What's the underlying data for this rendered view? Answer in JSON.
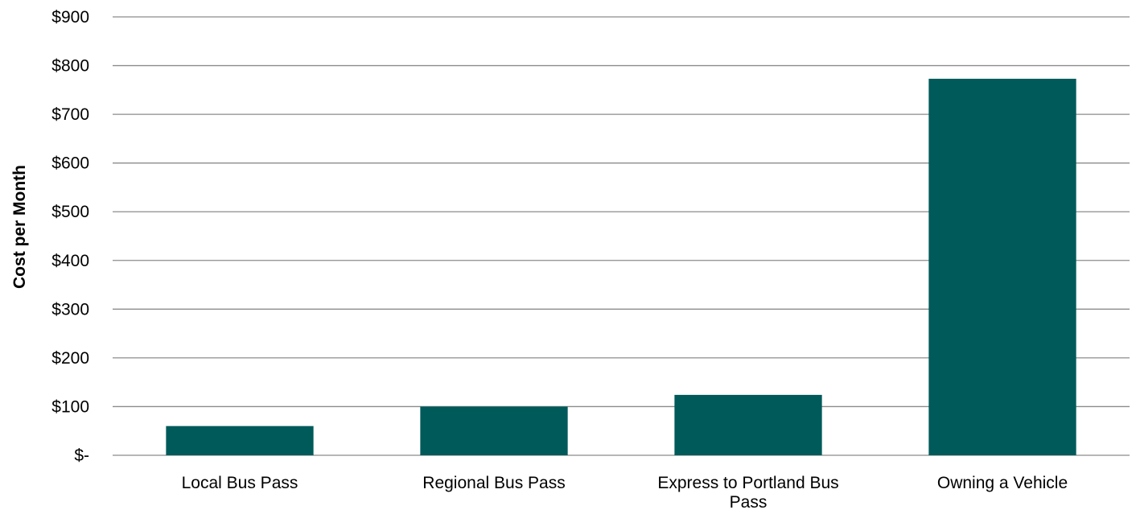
{
  "chart_data": {
    "type": "bar",
    "title": "",
    "xlabel": "",
    "ylabel": "Cost per Month",
    "categories": [
      [
        "Local Bus Pass"
      ],
      [
        "Regional Bus Pass"
      ],
      [
        "Express to Portland Bus",
        "Pass"
      ],
      [
        "Owning a Vehicle"
      ]
    ],
    "values": [
      60,
      100,
      124,
      773
    ],
    "ylim": [
      0,
      900
    ],
    "yticks": [
      0,
      100,
      200,
      300,
      400,
      500,
      600,
      700,
      800,
      900
    ],
    "ytick_labels": [
      "$-",
      "$100",
      "$200",
      "$300",
      "$400",
      "$500",
      "$600",
      "$700",
      "$800",
      "$900"
    ],
    "grid": true,
    "legend": "none",
    "colors": {
      "bar": "#005a5a",
      "grid": "#8c8c8c"
    }
  }
}
